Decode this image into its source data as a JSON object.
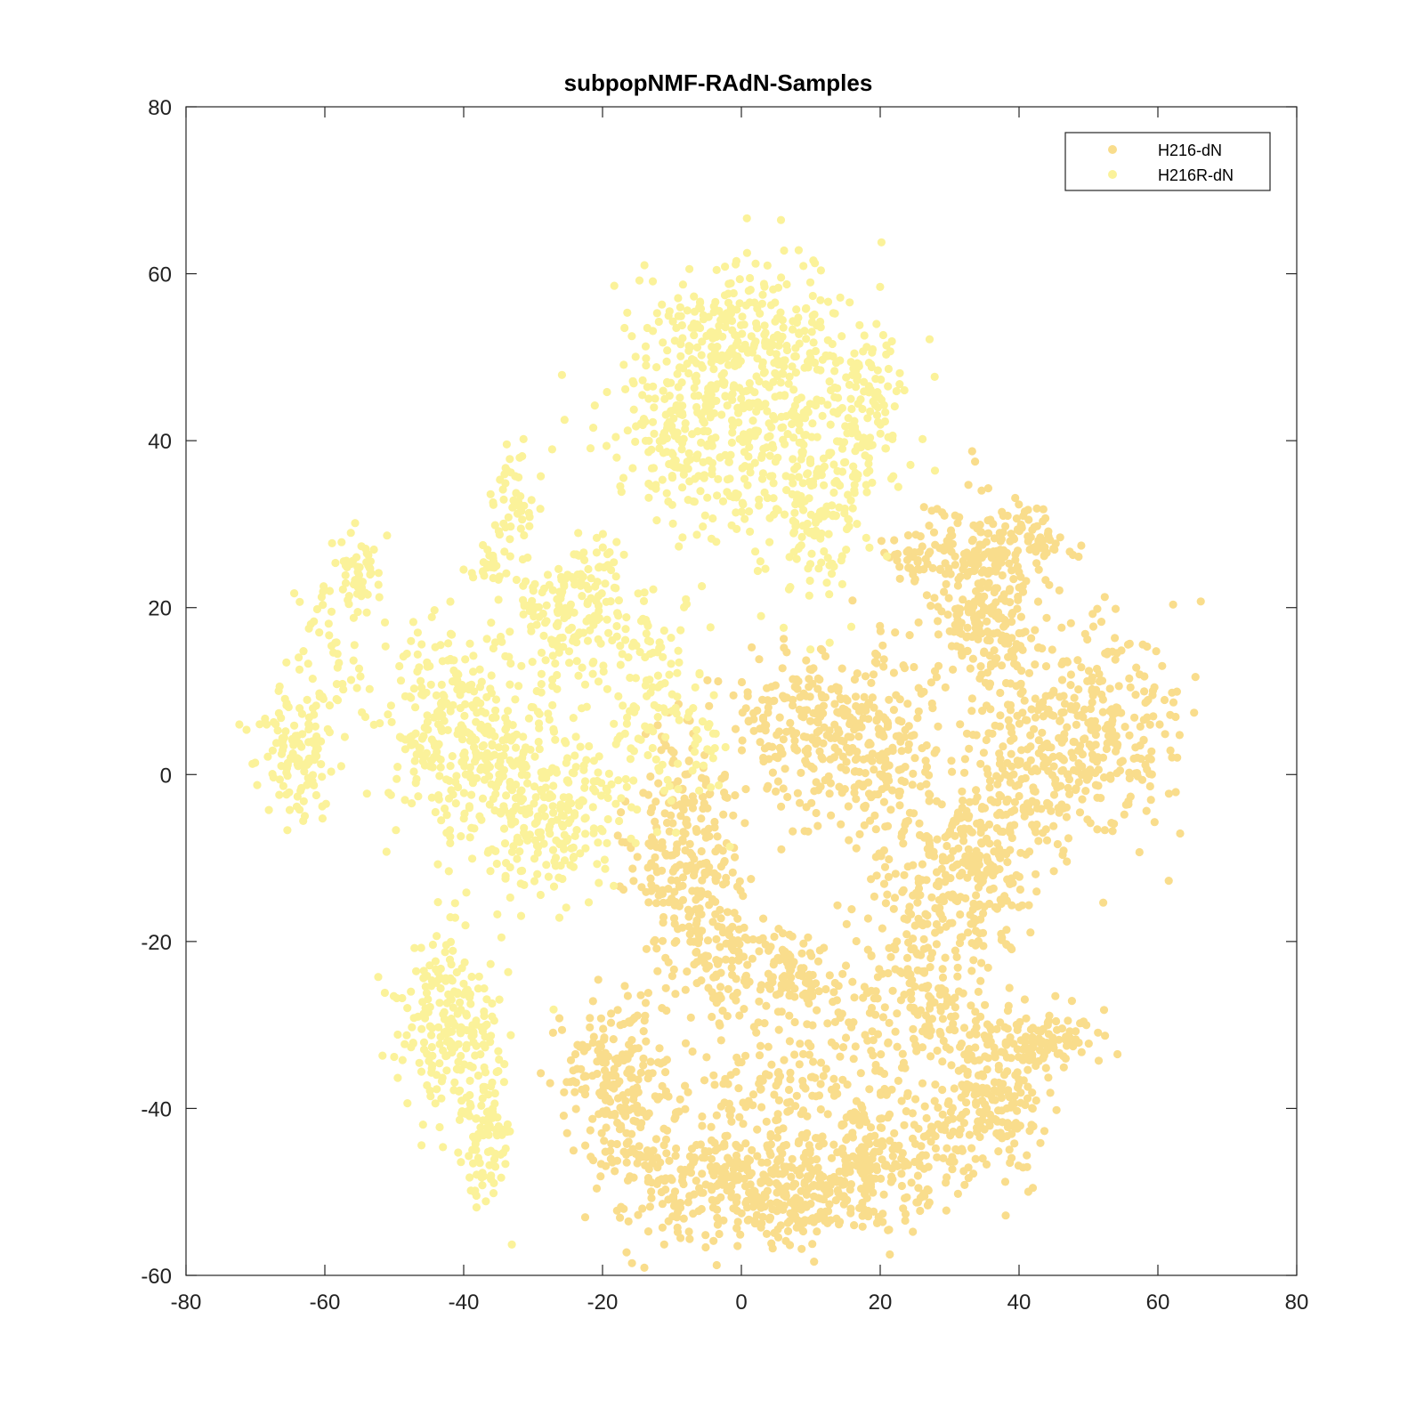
{
  "chart_data": {
    "type": "scatter",
    "title": "subpopNMF-RAdN-Samples",
    "xlabel": "",
    "ylabel": "",
    "xlim": [
      -80,
      80
    ],
    "ylim": [
      -60,
      80
    ],
    "xticks": [
      -80,
      -60,
      -40,
      -20,
      0,
      20,
      40,
      60,
      80
    ],
    "yticks": [
      -60,
      -40,
      -20,
      0,
      20,
      40,
      60,
      80
    ],
    "grid": false,
    "legend_position": "top-right",
    "series": [
      {
        "name": "H216-dN",
        "color": "#f9dd8c",
        "clusters": [
          {
            "cx": 12,
            "cy": 5,
            "sx": 7,
            "sy": 5,
            "n": 300
          },
          {
            "cx": 22,
            "cy": 2,
            "sx": 4,
            "sy": 6,
            "n": 90
          },
          {
            "cx": 34,
            "cy": 24,
            "sx": 4,
            "sy": 5,
            "n": 180
          },
          {
            "cx": 42,
            "cy": 28,
            "sx": 3,
            "sy": 2,
            "n": 60
          },
          {
            "cx": 36,
            "cy": 15,
            "sx": 3,
            "sy": 4,
            "n": 90
          },
          {
            "cx": 26,
            "cy": 27,
            "sx": 3,
            "sy": 2,
            "n": 50
          },
          {
            "cx": 52,
            "cy": 6,
            "sx": 6,
            "sy": 7,
            "n": 260
          },
          {
            "cx": 42,
            "cy": 0,
            "sx": 5,
            "sy": 6,
            "n": 180
          },
          {
            "cx": 34,
            "cy": -10,
            "sx": 4,
            "sy": 6,
            "n": 170
          },
          {
            "cx": 27,
            "cy": -18,
            "sx": 5,
            "sy": 7,
            "n": 190
          },
          {
            "cx": 22,
            "cy": -30,
            "sx": 6,
            "sy": 4,
            "n": 120
          },
          {
            "cx": -8,
            "cy": -10,
            "sx": 4,
            "sy": 9,
            "n": 260
          },
          {
            "cx": -3,
            "cy": -22,
            "sx": 3,
            "sy": 4,
            "n": 80
          },
          {
            "cx": 6,
            "cy": -24,
            "sx": 4,
            "sy": 3,
            "n": 110
          },
          {
            "cx": -18,
            "cy": -38,
            "sx": 4,
            "sy": 5,
            "n": 200
          },
          {
            "cx": -6,
            "cy": -48,
            "sx": 6,
            "sy": 4,
            "n": 220
          },
          {
            "cx": 8,
            "cy": -50,
            "sx": 6,
            "sy": 3,
            "n": 240
          },
          {
            "cx": 20,
            "cy": -45,
            "sx": 6,
            "sy": 4,
            "n": 220
          },
          {
            "cx": 36,
            "cy": -38,
            "sx": 4,
            "sy": 5,
            "n": 200
          },
          {
            "cx": 44,
            "cy": -32,
            "sx": 4,
            "sy": 2,
            "n": 80
          },
          {
            "cx": 6,
            "cy": -36,
            "sx": 6,
            "sy": 3,
            "n": 90
          }
        ]
      },
      {
        "name": "H216R-dN",
        "color": "#fbf29a",
        "clusters": [
          {
            "cx": 2,
            "cy": 45,
            "sx": 10,
            "sy": 7,
            "n": 360
          },
          {
            "cx": 0,
            "cy": 54,
            "sx": 7,
            "sy": 4,
            "n": 160
          },
          {
            "cx": 10,
            "cy": 32,
            "sx": 5,
            "sy": 6,
            "n": 170
          },
          {
            "cx": -10,
            "cy": 40,
            "sx": 5,
            "sy": 6,
            "n": 140
          },
          {
            "cx": 18,
            "cy": 45,
            "sx": 3,
            "sy": 4,
            "n": 80
          },
          {
            "cx": -24,
            "cy": 20,
            "sx": 4,
            "sy": 4,
            "n": 170
          },
          {
            "cx": -12,
            "cy": 10,
            "sx": 4,
            "sy": 6,
            "n": 110
          },
          {
            "cx": -40,
            "cy": 5,
            "sx": 6,
            "sy": 7,
            "n": 320
          },
          {
            "cx": -28,
            "cy": -4,
            "sx": 6,
            "sy": 6,
            "n": 260
          },
          {
            "cx": -33,
            "cy": 33,
            "sx": 2,
            "sy": 3,
            "n": 45
          },
          {
            "cx": -36,
            "cy": 25,
            "sx": 1.5,
            "sy": 1.5,
            "n": 25
          },
          {
            "cx": -64,
            "cy": 3,
            "sx": 2.5,
            "sy": 4,
            "n": 120
          },
          {
            "cx": -59,
            "cy": 15,
            "sx": 3,
            "sy": 5,
            "n": 50
          },
          {
            "cx": -55,
            "cy": 24,
            "sx": 1.5,
            "sy": 3,
            "n": 50
          },
          {
            "cx": -42,
            "cy": -30,
            "sx": 4,
            "sy": 6,
            "n": 220
          },
          {
            "cx": -37,
            "cy": -43,
            "sx": 2,
            "sy": 4,
            "n": 90
          },
          {
            "cx": -5,
            "cy": 3,
            "sx": 1.5,
            "sy": 2,
            "n": 15
          }
        ]
      }
    ]
  }
}
